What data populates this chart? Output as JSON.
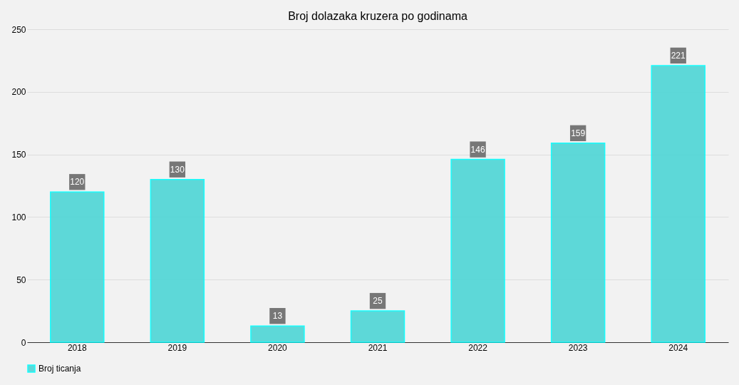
{
  "chart_data": {
    "type": "bar",
    "title": "Broj dolazaka kruzera po godinama",
    "categories": [
      "2018",
      "2019",
      "2020",
      "2021",
      "2022",
      "2023",
      "2024"
    ],
    "series": [
      {
        "name": "Broj ticanja",
        "color": "#4dd6d6",
        "values": [
          120,
          130,
          13,
          25,
          146,
          159,
          221
        ]
      }
    ],
    "ylim": [
      0,
      250
    ],
    "yticks": [
      0,
      50,
      100,
      150,
      200,
      250
    ],
    "grid": "y",
    "legend": "bottom",
    "data_labels": true
  }
}
